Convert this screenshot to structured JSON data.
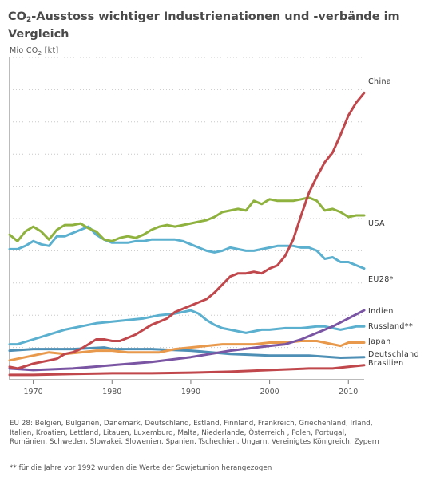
{
  "title_parts": [
    "CO",
    "2",
    "-Ausstoss wichtiger Industrienationen und -verbände im Vergleich"
  ],
  "unit_parts": [
    "Mio  CO",
    "2",
    " [kt]"
  ],
  "footnote": "EU 28: Belgien, Bulgarien, Dänemark, Deutschland, Estland, Finnland, Frankreich, Griechenland, Irland, Italien, Kroatien, Lettland, Litauen, Luxemburg, Malta, Niederlande, Österreich , Polen, Portugal, Rumänien, Schweden, Slowakei, Slowenien, Spanien, Tschechien, Ungarn, Vereinigtes Königreich, Zypern",
  "footnote2": "** für die Jahre vor 1992 wurden die Werte der Sowjetunion herangezogen",
  "chart_data": {
    "type": "line",
    "title": "CO2-Ausstoss wichtiger Industrienationen und -verbände im Vergleich",
    "ylabel": "Mio CO2 [kt]",
    "xlim": [
      1967,
      2012
    ],
    "ylim": [
      0,
      10
    ],
    "x_ticks": [
      1970,
      1980,
      1990,
      2000,
      2010
    ],
    "grid": "horizontal dashed",
    "legend": "right, labels at line ends",
    "colors": {
      "China": "#c0474b",
      "USA": "#8fb23f",
      "EU28*": "#5cb0cf",
      "Indien": "#7a55a3",
      "Russland**": "#5cb0cf",
      "Japan": "#e8994b",
      "Deutschland": "#4d8fb5",
      "Brasilien": "#c0474b"
    },
    "series": [
      {
        "name": "China",
        "x": [
          1967,
          1968,
          1969,
          1970,
          1971,
          1972,
          1973,
          1974,
          1975,
          1976,
          1977,
          1978,
          1979,
          1980,
          1981,
          1982,
          1983,
          1984,
          1985,
          1986,
          1987,
          1988,
          1989,
          1990,
          1991,
          1992,
          1993,
          1994,
          1995,
          1996,
          1997,
          1998,
          1999,
          2000,
          2001,
          2002,
          2003,
          2004,
          2005,
          2006,
          2007,
          2008,
          2009,
          2010,
          2011,
          2012
        ],
        "values": [
          0.4,
          0.35,
          0.42,
          0.5,
          0.55,
          0.6,
          0.65,
          0.8,
          0.85,
          0.95,
          1.1,
          1.25,
          1.25,
          1.2,
          1.2,
          1.3,
          1.4,
          1.55,
          1.7,
          1.8,
          1.9,
          2.1,
          2.2,
          2.3,
          2.4,
          2.5,
          2.7,
          2.95,
          3.2,
          3.3,
          3.3,
          3.35,
          3.3,
          3.45,
          3.55,
          3.85,
          4.35,
          5.1,
          5.8,
          6.3,
          6.75,
          7.05,
          7.6,
          8.2,
          8.6,
          8.9
        ]
      },
      {
        "name": "USA",
        "x": [
          1967,
          1968,
          1969,
          1970,
          1971,
          1972,
          1973,
          1974,
          1975,
          1976,
          1977,
          1978,
          1979,
          1980,
          1981,
          1982,
          1983,
          1984,
          1985,
          1986,
          1987,
          1988,
          1989,
          1990,
          1991,
          1992,
          1993,
          1994,
          1995,
          1996,
          1997,
          1998,
          1999,
          2000,
          2001,
          2002,
          2003,
          2004,
          2005,
          2006,
          2007,
          2008,
          2009,
          2010,
          2011,
          2012
        ],
        "values": [
          4.5,
          4.3,
          4.6,
          4.75,
          4.6,
          4.35,
          4.65,
          4.8,
          4.8,
          4.85,
          4.7,
          4.6,
          4.35,
          4.3,
          4.4,
          4.45,
          4.4,
          4.5,
          4.65,
          4.75,
          4.8,
          4.75,
          4.8,
          4.85,
          4.9,
          4.95,
          5.05,
          5.2,
          5.25,
          5.3,
          5.25,
          5.55,
          5.45,
          5.6,
          5.55,
          5.55,
          5.55,
          5.6,
          5.65,
          5.55,
          5.25,
          5.3,
          5.2,
          5.05,
          5.1,
          5.1
        ]
      },
      {
        "name": "EU28*",
        "x": [
          1967,
          1968,
          1969,
          1970,
          1971,
          1972,
          1973,
          1974,
          1975,
          1976,
          1977,
          1978,
          1979,
          1980,
          1981,
          1982,
          1983,
          1984,
          1985,
          1986,
          1987,
          1988,
          1989,
          1990,
          1991,
          1992,
          1993,
          1994,
          1995,
          1996,
          1997,
          1998,
          1999,
          2000,
          2001,
          2002,
          2003,
          2004,
          2005,
          2006,
          2007,
          2008,
          2009,
          2010,
          2011,
          2012
        ],
        "values": [
          4.05,
          4.05,
          4.15,
          4.3,
          4.2,
          4.15,
          4.45,
          4.45,
          4.55,
          4.65,
          4.75,
          4.5,
          4.35,
          4.25,
          4.25,
          4.25,
          4.3,
          4.3,
          4.35,
          4.35,
          4.35,
          4.35,
          4.3,
          4.2,
          4.1,
          4.0,
          3.95,
          4.0,
          4.1,
          4.05,
          4.0,
          4.0,
          4.05,
          4.1,
          4.15,
          4.15,
          4.15,
          4.1,
          4.1,
          4.0,
          3.75,
          3.8,
          3.65,
          3.65,
          3.55,
          3.45
        ]
      },
      {
        "name": "Indien",
        "x": [
          1967,
          1970,
          1975,
          1980,
          1985,
          1990,
          1995,
          2000,
          2002,
          2004,
          2006,
          2008,
          2010,
          2012
        ],
        "values": [
          0.35,
          0.3,
          0.35,
          0.45,
          0.55,
          0.7,
          0.9,
          1.05,
          1.1,
          1.25,
          1.45,
          1.65,
          1.9,
          2.15
        ]
      },
      {
        "name": "Russland**",
        "x": [
          1967,
          1968,
          1970,
          1972,
          1974,
          1976,
          1978,
          1980,
          1982,
          1984,
          1986,
          1988,
          1989,
          1990,
          1991,
          1992,
          1993,
          1994,
          1995,
          1996,
          1997,
          1998,
          1999,
          2000,
          2002,
          2004,
          2006,
          2007,
          2008,
          2009,
          2010,
          2011,
          2012
        ],
        "values": [
          1.1,
          1.1,
          1.25,
          1.4,
          1.55,
          1.65,
          1.75,
          1.8,
          1.85,
          1.9,
          2.0,
          2.05,
          2.1,
          2.15,
          2.05,
          1.85,
          1.7,
          1.6,
          1.55,
          1.5,
          1.45,
          1.5,
          1.55,
          1.55,
          1.6,
          1.6,
          1.65,
          1.65,
          1.6,
          1.55,
          1.6,
          1.65,
          1.65
        ]
      },
      {
        "name": "Japan",
        "x": [
          1967,
          1970,
          1972,
          1974,
          1976,
          1978,
          1980,
          1982,
          1984,
          1986,
          1988,
          1990,
          1992,
          1994,
          1996,
          1998,
          2000,
          2002,
          2004,
          2006,
          2008,
          2009,
          2010,
          2012
        ],
        "values": [
          0.6,
          0.75,
          0.85,
          0.8,
          0.85,
          0.9,
          0.9,
          0.85,
          0.85,
          0.85,
          0.95,
          1.0,
          1.05,
          1.1,
          1.1,
          1.1,
          1.15,
          1.15,
          1.2,
          1.2,
          1.1,
          1.05,
          1.15,
          1.15
        ]
      },
      {
        "name": "Deutschland",
        "x": [
          1967,
          1970,
          1975,
          1979,
          1980,
          1985,
          1990,
          1995,
          2000,
          2005,
          2009,
          2012
        ],
        "values": [
          0.9,
          0.95,
          0.95,
          1.0,
          0.95,
          0.95,
          0.9,
          0.8,
          0.75,
          0.75,
          0.68,
          0.7
        ]
      },
      {
        "name": "Brasilien",
        "x": [
          1967,
          1970,
          1975,
          1980,
          1985,
          1990,
          1995,
          2000,
          2005,
          2008,
          2010,
          2012
        ],
        "values": [
          0.15,
          0.15,
          0.18,
          0.2,
          0.2,
          0.22,
          0.25,
          0.3,
          0.35,
          0.35,
          0.4,
          0.45
        ]
      }
    ]
  }
}
